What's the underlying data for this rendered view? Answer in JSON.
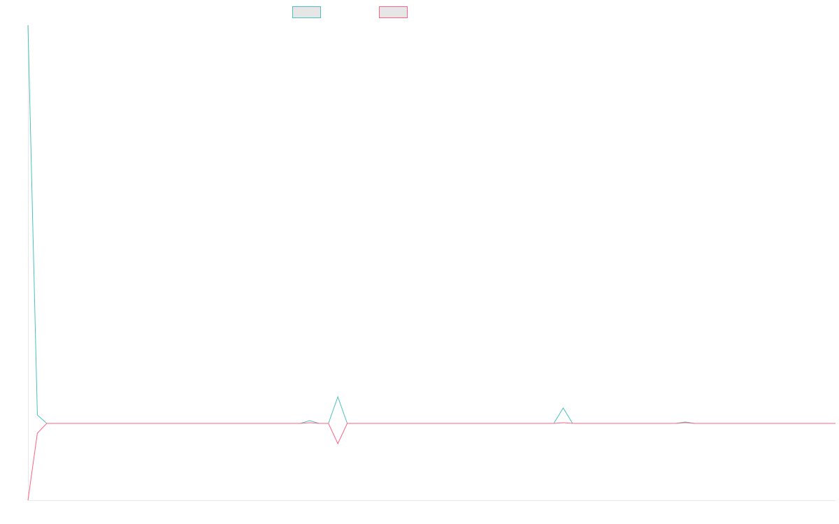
{
  "chart_data": {
    "type": "line",
    "title": "",
    "xlabel": "",
    "ylabel": "",
    "legend_position": "top-center",
    "grid": false,
    "x": [
      0,
      1,
      2,
      3,
      4,
      5,
      6,
      7,
      8,
      9,
      10,
      11,
      12,
      13,
      14,
      15,
      16,
      17,
      18,
      19,
      20,
      21,
      22,
      23,
      24,
      25,
      26,
      27,
      28,
      29,
      30,
      31,
      32,
      33,
      34,
      35,
      36,
      37,
      38,
      39,
      40,
      41,
      42,
      43,
      44,
      45,
      46,
      47,
      48,
      49,
      50,
      51,
      52,
      53,
      54,
      55,
      56,
      57,
      58,
      59,
      60,
      61,
      62,
      63,
      64,
      65,
      66,
      67,
      68,
      69,
      70,
      71,
      72,
      73,
      74,
      75,
      76,
      77,
      78,
      79,
      80,
      81,
      82,
      83,
      84,
      85,
      86
    ],
    "ylim": [
      -110,
      570
    ],
    "series": [
      {
        "name": "",
        "color": "#4bc0c0",
        "fill": "#e6e6e6",
        "values": [
          570,
          12,
          0,
          0,
          0,
          0,
          0,
          0,
          0,
          0,
          0,
          0,
          0,
          0,
          0,
          0,
          0,
          0,
          0,
          0,
          0,
          0,
          0,
          0,
          0,
          0,
          0,
          0,
          0,
          0,
          4,
          0,
          0,
          38,
          0,
          0,
          0,
          0,
          0,
          0,
          0,
          0,
          0,
          0,
          0,
          0,
          0,
          0,
          0,
          0,
          0,
          0,
          0,
          0,
          0,
          0,
          0,
          22,
          0,
          0,
          0,
          0,
          0,
          0,
          0,
          0,
          0,
          0,
          0,
          0,
          2,
          0,
          0,
          0,
          0,
          0,
          0,
          0,
          0,
          0,
          0,
          0,
          0,
          0,
          0,
          0,
          0
        ]
      },
      {
        "name": "",
        "color": "#ff6384",
        "fill": "#e6e6e6",
        "values": [
          -110,
          -14,
          0,
          0,
          0,
          0,
          0,
          0,
          0,
          0,
          0,
          0,
          0,
          0,
          0,
          0,
          0,
          0,
          0,
          0,
          0,
          0,
          0,
          0,
          0,
          0,
          0,
          0,
          0,
          0,
          1,
          0,
          0,
          -29,
          0,
          0,
          0,
          0,
          0,
          0,
          0,
          0,
          0,
          0,
          0,
          0,
          0,
          0,
          0,
          0,
          0,
          0,
          0,
          0,
          0,
          0,
          0,
          1,
          0,
          0,
          0,
          0,
          0,
          0,
          0,
          0,
          0,
          0,
          0,
          0,
          1,
          0,
          0,
          0,
          0,
          0,
          0,
          0,
          0,
          0,
          0,
          0,
          0,
          0,
          0,
          0,
          0
        ]
      }
    ]
  }
}
